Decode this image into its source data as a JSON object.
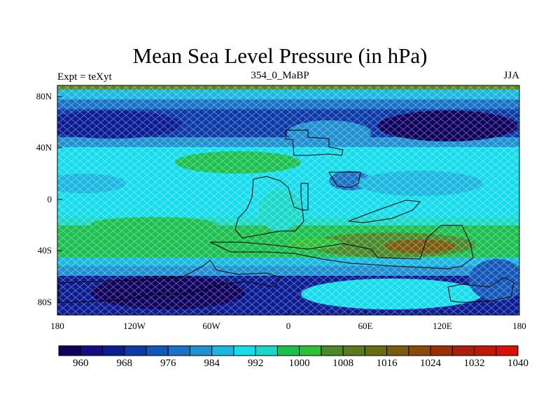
{
  "map": {
    "title": "Mean Sea Level Pressure (in hPa)",
    "left_string": "Expt = teXyt",
    "center_string": "354_0_MaBP",
    "right_string": "JJA",
    "lat_ticks": [
      "80N",
      "40N",
      "0",
      "40S",
      "80S"
    ],
    "lon_ticks": [
      "180",
      "120W",
      "60W",
      "0",
      "60E",
      "120E",
      "180"
    ]
  },
  "colorbar": {
    "labels": [
      "960",
      "968",
      "976",
      "984",
      "992",
      "1000",
      "1008",
      "1016",
      "1024",
      "1032",
      "1040"
    ],
    "colors": [
      "#10005e",
      "#150e82",
      "#0c1c92",
      "#0e3aa8",
      "#1358b8",
      "#1872c6",
      "#2090d0",
      "#1ab8e0",
      "#16dcec",
      "#1ad8c8",
      "#1cc050",
      "#30c038",
      "#4a8a2a",
      "#5a7a20",
      "#6a6c14",
      "#7a5c10",
      "#8a4a0c",
      "#9a3008",
      "#aa2008",
      "#c01808",
      "#d81006"
    ]
  }
}
